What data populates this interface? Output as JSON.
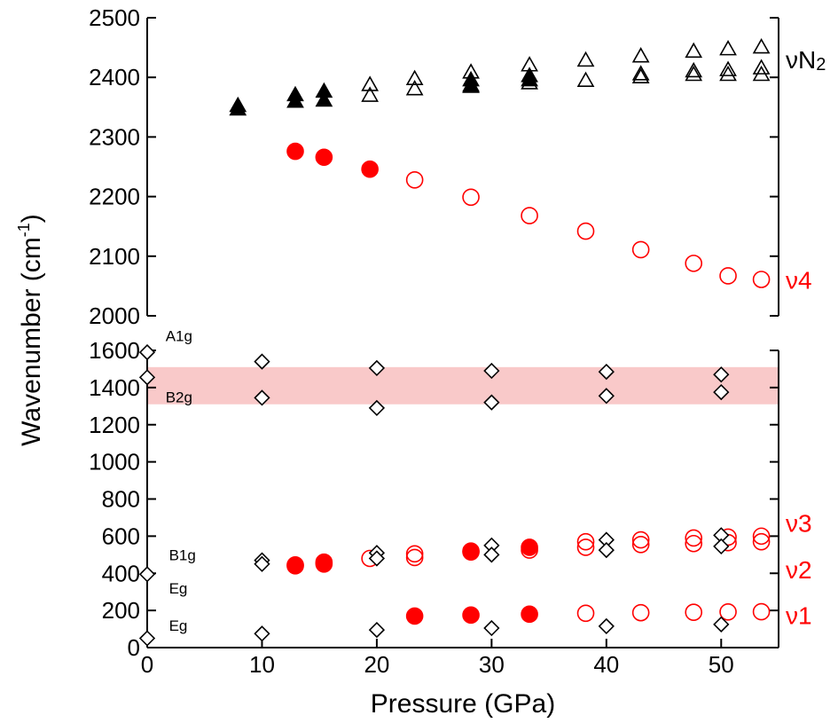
{
  "chart_data": {
    "type": "scatter",
    "xlabel": "Pressure (GPa)",
    "ylabel_main": "Wavenumber (cm",
    "ylabel_sup": "-1",
    "ylabel_close": ")",
    "xlim": [
      0,
      55
    ],
    "x_ticks": [
      0,
      10,
      20,
      30,
      40,
      50
    ],
    "upper_panel": {
      "ylim": [
        2000,
        2500
      ],
      "y_ticks": [
        2000,
        2100,
        2200,
        2300,
        2400,
        2500
      ]
    },
    "lower_panel": {
      "ylim": [
        0,
        1600
      ],
      "y_ticks": [
        0,
        200,
        400,
        600,
        800,
        1000,
        1200,
        1400,
        1600
      ],
      "shaded_band": [
        1310,
        1510
      ],
      "band_color": "#f9c9c9"
    },
    "colors": {
      "black": "#000000",
      "red": "#ff0000"
    },
    "series": [
      {
        "name": "νN2",
        "marker": "triangle",
        "filled": true,
        "color": "black",
        "panel": "upper",
        "points": [
          [
            7.9,
            2352
          ],
          [
            7.9,
            2346
          ],
          [
            12.9,
            2370
          ],
          [
            12.9,
            2359
          ],
          [
            15.4,
            2376
          ],
          [
            15.4,
            2361
          ],
          [
            28.2,
            2395
          ],
          [
            28.2,
            2386
          ],
          [
            33.3,
            2402
          ],
          [
            33.3,
            2395
          ]
        ]
      },
      {
        "name": "νN2",
        "marker": "triangle",
        "filled": false,
        "color": "black",
        "panel": "upper",
        "points": [
          [
            19.4,
            2387
          ],
          [
            19.4,
            2369
          ],
          [
            23.3,
            2397
          ],
          [
            23.3,
            2380
          ],
          [
            28.2,
            2408
          ],
          [
            28.2,
            2384
          ],
          [
            33.3,
            2420
          ],
          [
            33.3,
            2390
          ],
          [
            38.2,
            2428
          ],
          [
            38.2,
            2394
          ],
          [
            43.0,
            2435
          ],
          [
            43.0,
            2405
          ],
          [
            43.0,
            2400
          ],
          [
            47.6,
            2443
          ],
          [
            47.6,
            2410
          ],
          [
            47.6,
            2404
          ],
          [
            50.6,
            2447
          ],
          [
            50.6,
            2412
          ],
          [
            50.6,
            2404
          ],
          [
            53.5,
            2450
          ],
          [
            53.5,
            2415
          ],
          [
            53.5,
            2404
          ]
        ]
      },
      {
        "name": "ν4",
        "marker": "circle",
        "filled": true,
        "color": "red",
        "panel": "upper",
        "points": [
          [
            12.9,
            2276
          ],
          [
            15.4,
            2266
          ],
          [
            19.4,
            2246
          ]
        ]
      },
      {
        "name": "ν4",
        "marker": "circle",
        "filled": false,
        "color": "red",
        "panel": "upper",
        "points": [
          [
            23.3,
            2228
          ],
          [
            28.2,
            2199
          ],
          [
            33.3,
            2168
          ],
          [
            38.2,
            2142
          ],
          [
            43.0,
            2111
          ],
          [
            47.6,
            2088
          ],
          [
            50.6,
            2067
          ],
          [
            53.5,
            2061
          ]
        ]
      },
      {
        "name": "ν1",
        "marker": "circle",
        "filled": true,
        "color": "red",
        "panel": "lower",
        "points": [
          [
            23.3,
            170
          ],
          [
            28.2,
            175
          ],
          [
            33.3,
            180
          ]
        ]
      },
      {
        "name": "ν1",
        "marker": "circle",
        "filled": false,
        "color": "red",
        "panel": "lower",
        "points": [
          [
            38.2,
            185
          ],
          [
            43.0,
            188
          ],
          [
            47.6,
            190
          ],
          [
            50.6,
            192
          ],
          [
            53.5,
            193
          ]
        ]
      },
      {
        "name": "ν2 / ν3",
        "marker": "circle",
        "filled": true,
        "color": "red",
        "panel": "lower",
        "points": [
          [
            12.9,
            445
          ],
          [
            15.4,
            450
          ],
          [
            12.9,
            440
          ],
          [
            15.4,
            460
          ],
          [
            28.2,
            520
          ],
          [
            33.3,
            540
          ]
        ]
      },
      {
        "name": "ν2 / ν3",
        "marker": "circle",
        "filled": false,
        "color": "red",
        "panel": "lower",
        "points": [
          [
            19.4,
            480
          ],
          [
            23.3,
            485
          ],
          [
            23.3,
            505
          ],
          [
            28.2,
            515
          ],
          [
            33.3,
            525
          ],
          [
            38.2,
            540
          ],
          [
            38.2,
            570
          ],
          [
            43.0,
            555
          ],
          [
            43.0,
            580
          ],
          [
            47.6,
            560
          ],
          [
            47.6,
            590
          ],
          [
            50.6,
            565
          ],
          [
            50.6,
            595
          ],
          [
            53.5,
            570
          ],
          [
            53.5,
            600
          ]
        ]
      },
      {
        "name": "diamonds",
        "marker": "diamond",
        "filled": false,
        "color": "black",
        "panel": "lower",
        "points": [
          [
            0,
            1590
          ],
          [
            0,
            1455
          ],
          [
            0,
            395
          ],
          [
            0,
            50
          ],
          [
            10,
            1540
          ],
          [
            10,
            1345
          ],
          [
            10,
            470
          ],
          [
            10,
            450
          ],
          [
            10,
            75
          ],
          [
            20,
            1505
          ],
          [
            20,
            1290
          ],
          [
            20,
            510
          ],
          [
            20,
            480
          ],
          [
            20,
            95
          ],
          [
            30,
            1490
          ],
          [
            30,
            1320
          ],
          [
            30,
            550
          ],
          [
            30,
            500
          ],
          [
            30,
            105
          ],
          [
            40,
            1485
          ],
          [
            40,
            1355
          ],
          [
            40,
            580
          ],
          [
            40,
            525
          ],
          [
            40,
            115
          ],
          [
            50,
            1470
          ],
          [
            50,
            1375
          ],
          [
            50,
            605
          ],
          [
            50,
            545
          ],
          [
            50,
            125
          ]
        ]
      }
    ],
    "annotations": {
      "mode_labels": [
        {
          "text": "A1g",
          "x": 1.6,
          "y": 1680
        },
        {
          "text": "B2g",
          "x": 1.6,
          "y": 1350
        },
        {
          "text": "B1g",
          "x": 1.9,
          "y": 500
        },
        {
          "text": "Eg",
          "x": 1.9,
          "y": 320
        },
        {
          "text": "Eg",
          "x": 1.9,
          "y": 120
        }
      ],
      "side_labels": [
        {
          "text": "νN",
          "sub": "2",
          "color": "black",
          "panel": "upper",
          "y": 2430
        },
        {
          "text": "ν4",
          "color": "red",
          "panel": "upper",
          "y": 2060
        },
        {
          "text": "ν3",
          "color": "red",
          "panel": "lower",
          "y": 670
        },
        {
          "text": "ν2",
          "color": "red",
          "panel": "lower",
          "y": 420
        },
        {
          "text": "ν1",
          "color": "red",
          "panel": "lower",
          "y": 175
        }
      ]
    }
  }
}
